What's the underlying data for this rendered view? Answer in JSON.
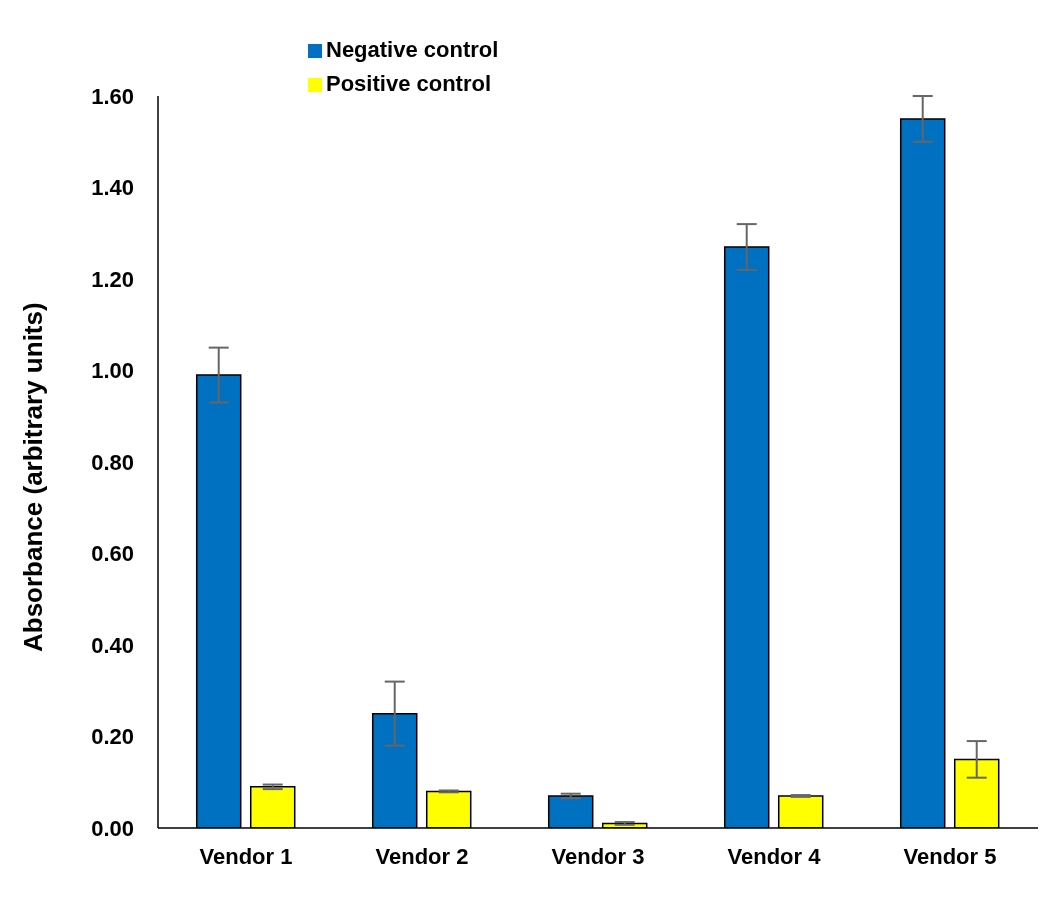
{
  "chart_data": {
    "type": "bar",
    "ylabel": "Absorbance (arbitrary units)",
    "categories": [
      "Vendor 1",
      "Vendor 2",
      "Vendor 3",
      "Vendor 4",
      "Vendor 5"
    ],
    "series": [
      {
        "name": "Negative control",
        "color": "#0070c0",
        "values": [
          0.99,
          0.25,
          0.07,
          1.27,
          1.55
        ],
        "errors": [
          0.06,
          0.07,
          0.005,
          0.05,
          0.05
        ]
      },
      {
        "name": "Positive control",
        "color": "#ffff00",
        "values": [
          0.09,
          0.08,
          0.01,
          0.07,
          0.15
        ],
        "errors": [
          0.005,
          0.002,
          0.003,
          0.002,
          0.04
        ]
      }
    ],
    "ylim": [
      0,
      1.6
    ],
    "yticks": [
      {
        "value": 0,
        "label": "0.00"
      },
      {
        "value": 0.2,
        "label": "0.20"
      },
      {
        "value": 0.4,
        "label": "0.40"
      },
      {
        "value": 0.6,
        "label": "0.60"
      },
      {
        "value": 0.8,
        "label": "0.80"
      },
      {
        "value": 1,
        "label": "1.00"
      },
      {
        "value": 1.2,
        "label": "1.20"
      },
      {
        "value": 1.4,
        "label": "1.40"
      },
      {
        "value": 1.6,
        "label": "1.60"
      }
    ],
    "grid": false,
    "legend": "top"
  }
}
